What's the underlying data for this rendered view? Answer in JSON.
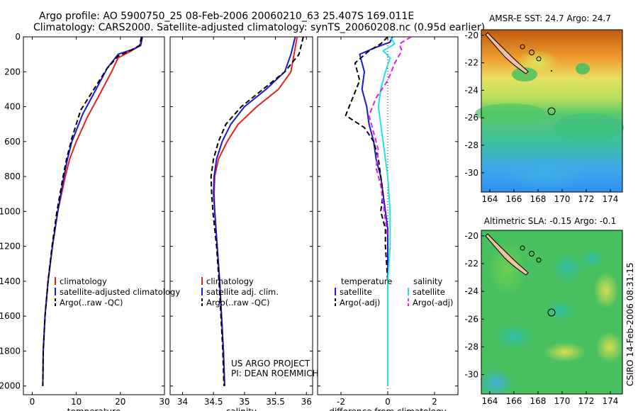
{
  "title_line1": "Argo profile: AO 5900750_25 08-Feb-2006 20060210_63 25.407S 169.011E",
  "title_line2": "Climatology: CARS2000. Satellite-adjusted climatology: synTS_20060208.nc (0.95d earlier)",
  "footer_project": "US ARGO PROJECT",
  "footer_pi": "PI: DEAN ROEMMICH",
  "side_stamp": "CSIRO 14-Feb-2006 08:31:15",
  "colors": {
    "climatology": "#e8211c",
    "satellite": "#1a1ad6",
    "argo": "#000000",
    "sat_salinity": "#27e0e6",
    "argo_adj_salinity": "#e020e0"
  },
  "chart_data": [
    {
      "id": "temperature",
      "type": "line",
      "xlabel": "temperature",
      "xlim": [
        -2,
        30
      ],
      "xticks": [
        0,
        10,
        20,
        30
      ],
      "ylim": [
        2050,
        0
      ],
      "yticks": [
        0,
        200,
        400,
        600,
        800,
        1000,
        1200,
        1400,
        1600,
        1800,
        2000
      ],
      "legend": [
        "climatology",
        "satellite-adjusted climatology",
        "Argo(..raw -QC)"
      ],
      "series": [
        {
          "name": "climatology",
          "color": "#e8211c",
          "style": "solid",
          "x": [
            24.8,
            24.5,
            22.5,
            19.5,
            18.0,
            15.5,
            12.5,
            10.0,
            8.5,
            7.5,
            5.8,
            4.6,
            3.6,
            2.9,
            2.5,
            2.4
          ],
          "y": [
            0,
            50,
            80,
            120,
            200,
            320,
            460,
            600,
            700,
            800,
            1000,
            1200,
            1400,
            1600,
            1800,
            2000
          ]
        },
        {
          "name": "satellite-adjusted climatology",
          "color": "#1a1ad6",
          "style": "solid",
          "x": [
            25.0,
            24.6,
            23.0,
            19.5,
            17.0,
            14.5,
            11.5,
            9.0,
            8.0,
            7.2,
            5.8,
            4.6,
            3.6,
            2.9,
            2.5,
            2.4
          ],
          "y": [
            0,
            50,
            70,
            100,
            180,
            300,
            440,
            600,
            700,
            800,
            1000,
            1200,
            1400,
            1600,
            1800,
            2000
          ]
        },
        {
          "name": "Argo(..raw -QC)",
          "color": "#000000",
          "style": "dashed",
          "x": [
            24.8,
            24.3,
            22.5,
            19.5,
            17.0,
            14.0,
            11.0,
            9.0,
            7.8,
            7.0,
            5.6,
            4.5,
            3.6,
            2.9,
            2.5,
            2.4
          ],
          "y": [
            0,
            50,
            75,
            110,
            180,
            300,
            420,
            580,
            700,
            800,
            1000,
            1200,
            1400,
            1600,
            1800,
            2000
          ]
        }
      ]
    },
    {
      "id": "salinity",
      "type": "line",
      "xlabel": "salinity",
      "xlim": [
        33.8,
        36.1
      ],
      "xticks": [
        34,
        34.5,
        35,
        35.5,
        36
      ],
      "ylim": [
        2050,
        0
      ],
      "yticks": [
        0,
        200,
        400,
        600,
        800,
        1000,
        1200,
        1400,
        1600,
        1800,
        2000
      ],
      "legend": [
        "climatology",
        "satellite adj. clim.",
        "Argo(..raw -QC)"
      ],
      "series": [
        {
          "name": "climatology",
          "color": "#e8211c",
          "style": "solid",
          "x": [
            35.85,
            35.8,
            35.75,
            35.55,
            35.2,
            34.9,
            34.72,
            34.58,
            34.52,
            34.51,
            34.52,
            34.56,
            34.6,
            34.63,
            34.66,
            34.68
          ],
          "y": [
            0,
            100,
            200,
            300,
            400,
            500,
            600,
            700,
            800,
            900,
            1000,
            1200,
            1400,
            1600,
            1800,
            2000
          ]
        },
        {
          "name": "satellite adj. clim.",
          "color": "#1a1ad6",
          "style": "solid",
          "x": [
            35.82,
            35.75,
            35.65,
            35.35,
            35.0,
            34.78,
            34.64,
            34.55,
            34.51,
            34.5,
            34.52,
            34.56,
            34.6,
            34.63,
            34.66,
            34.68
          ],
          "y": [
            0,
            100,
            200,
            300,
            400,
            500,
            600,
            700,
            800,
            900,
            1000,
            1200,
            1400,
            1600,
            1800,
            2000
          ]
        },
        {
          "name": "Argo(..raw -QC)",
          "color": "#000000",
          "style": "dashed",
          "x": [
            35.95,
            35.88,
            35.65,
            35.3,
            34.95,
            34.7,
            34.58,
            34.5,
            34.46,
            34.47,
            34.49,
            34.55,
            34.59,
            34.62,
            34.65,
            34.67
          ],
          "y": [
            0,
            100,
            200,
            300,
            400,
            500,
            600,
            700,
            800,
            900,
            1000,
            1200,
            1400,
            1600,
            1800,
            2000
          ]
        }
      ]
    },
    {
      "id": "difference",
      "type": "line",
      "xlabel": "difference from climatology",
      "xlim": [
        -3,
        3
      ],
      "xticks": [
        -2,
        0,
        2
      ],
      "ylim": [
        2050,
        0
      ],
      "yticks": [
        0,
        200,
        400,
        600,
        800,
        1000,
        1200,
        1400,
        1600,
        1800,
        2000
      ],
      "legend_groups": [
        {
          "heading": "temperature",
          "items": [
            "satellite",
            "Argo(-adj)"
          ]
        },
        {
          "heading": "salinity",
          "items": [
            "satellite",
            "Argo(-adj)"
          ]
        }
      ],
      "series": [
        {
          "name": "temperature satellite",
          "color": "#1a1ad6",
          "style": "solid",
          "x": [
            0.2,
            0.1,
            -0.5,
            -1.2,
            -1.0,
            -1.1,
            -0.9,
            -0.8,
            -0.6,
            -0.5,
            -0.3,
            -0.2,
            -0.1,
            0.0,
            0.0,
            0.0
          ],
          "y": [
            0,
            30,
            60,
            100,
            200,
            300,
            400,
            500,
            600,
            700,
            800,
            900,
            1000,
            1100,
            1200,
            1400
          ]
        },
        {
          "name": "temperature Argo(-adj)",
          "color": "#000000",
          "style": "dashed",
          "x": [
            0.0,
            -0.3,
            -0.8,
            -1.4,
            -1.2,
            -1.5,
            -1.8,
            -1.0,
            -0.6,
            -0.4,
            -0.3,
            -0.2,
            -0.3,
            -0.1,
            -0.1,
            0.0
          ],
          "y": [
            0,
            40,
            80,
            150,
            250,
            350,
            450,
            520,
            600,
            700,
            800,
            900,
            1000,
            1100,
            1200,
            1400
          ]
        },
        {
          "name": "salinity satellite",
          "color": "#27e0e6",
          "style": "solid",
          "x": [
            0.1,
            0.3,
            -0.2,
            0.1,
            -0.1,
            -0.3,
            -0.4,
            -0.3,
            -0.2,
            -0.1,
            0.0,
            0.1,
            0.1,
            0.0,
            0.0,
            0.0,
            0.0
          ],
          "y": [
            0,
            40,
            80,
            120,
            200,
            300,
            400,
            500,
            600,
            700,
            800,
            1000,
            1200,
            1400,
            1600,
            1800,
            2000
          ]
        },
        {
          "name": "salinity Argo(-adj)",
          "color": "#e020e0",
          "style": "dashed",
          "x": [
            1.0,
            0.5,
            0.6,
            0.3,
            0.0,
            -0.5,
            -0.8,
            -0.6,
            -0.4,
            -0.5,
            -0.3,
            -0.2,
            -0.1,
            0.0
          ],
          "y": [
            0,
            40,
            80,
            150,
            250,
            350,
            450,
            550,
            650,
            750,
            850,
            950,
            1050,
            1150
          ]
        }
      ]
    },
    {
      "id": "sst_map",
      "type": "heatmap",
      "title": "AMSR-E SST: 24.7 Argo: 24.7",
      "xlim": [
        163.3,
        175.0
      ],
      "xticks": [
        164,
        166,
        168,
        170,
        172,
        174
      ],
      "ylim": [
        -31.4,
        -19.6
      ],
      "yticks": [
        -20,
        -22,
        -24,
        -26,
        -28,
        -30
      ],
      "argo_position": [
        169.011,
        -25.407
      ]
    },
    {
      "id": "sla_map",
      "type": "heatmap",
      "title": "Altimetric SLA: -0.15 Argo: -0.1",
      "xlim": [
        163.3,
        175.0
      ],
      "xticks": [
        164,
        166,
        168,
        170,
        172,
        174
      ],
      "ylim": [
        -31.4,
        -19.6
      ],
      "yticks": [
        -20,
        -22,
        -24,
        -26,
        -28,
        -30
      ],
      "argo_position": [
        169.011,
        -25.407
      ]
    }
  ]
}
